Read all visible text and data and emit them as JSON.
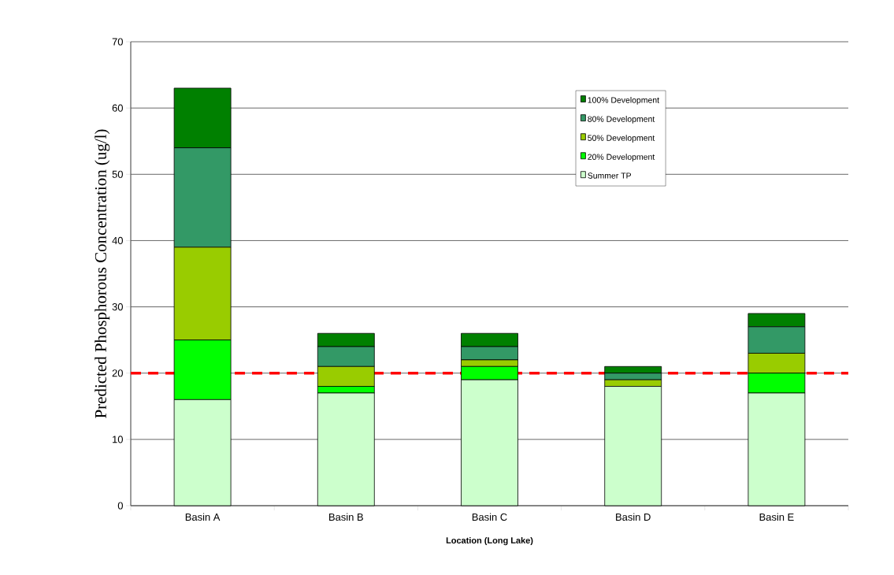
{
  "chart_data": {
    "type": "bar",
    "stacked": true,
    "xlabel": "Location (Long Lake)",
    "ylabel": "Predicted Phosphorous Concentration (ug/l)",
    "categories": [
      "Basin A",
      "Basin B",
      "Basin C",
      "Basin D",
      "Basin E"
    ],
    "series": [
      {
        "name": "Summer TP",
        "color": "#ccffcc",
        "values": [
          16,
          17,
          19,
          18,
          17
        ]
      },
      {
        "name": "20% Development",
        "color": "#00ff00",
        "values": [
          9,
          1,
          2,
          0,
          3
        ]
      },
      {
        "name": "50% Development",
        "color": "#99cc00",
        "values": [
          14,
          3,
          1,
          1,
          3
        ]
      },
      {
        "name": "80% Development",
        "color": "#339966",
        "values": [
          15,
          3,
          2,
          1,
          4
        ]
      },
      {
        "name": "100% Development",
        "color": "#008000",
        "values": [
          9,
          2,
          2,
          1,
          2
        ]
      }
    ],
    "ylim": [
      0,
      70
    ],
    "yticks": [
      0,
      10,
      20,
      30,
      40,
      50,
      60,
      70
    ],
    "ref_lines": [
      {
        "axis": "y",
        "value": 20,
        "color": "#ff0000",
        "line_style": "dashed"
      }
    ],
    "grid": "y",
    "legend": "top right"
  }
}
